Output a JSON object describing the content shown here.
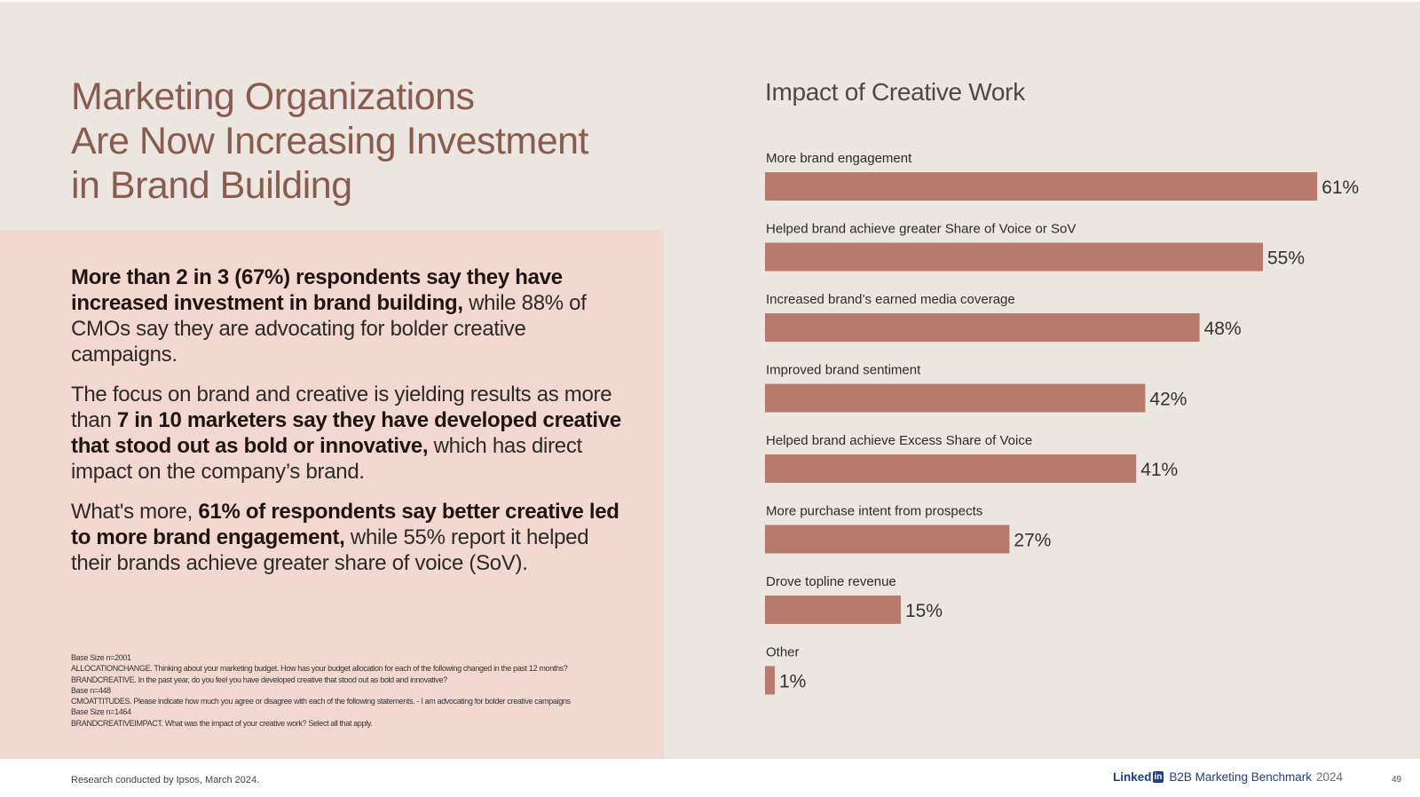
{
  "headline": [
    "Marketing Organizations",
    "Are Now Increasing Investment",
    "in Brand Building"
  ],
  "paragraphs": [
    {
      "b1": "More than 2 in 3 (67%) respondents say they have increased investment in brand building,",
      "t1": " while 88% of CMOs say they are advocating for bolder creative campaigns."
    },
    {
      "t1": "The focus on brand and creative is yielding results as more than ",
      "b1": "7 in 10 marketers say they have developed creative that stood out as bold or innovative,",
      "t2": " which has direct impact on the company’s brand."
    },
    {
      "t1": "What's more, ",
      "b1": "61% of respondents say better creative led to more brand engagement,",
      "t2": " while 55% report it helped their brands achieve greater share of voice (SoV)."
    }
  ],
  "footnotes": [
    "Base Size n=2001",
    "ALLOCATIONCHANGE. Thinking about your marketing budget. How has your budget allocation for each of the following changed in the past 12 months?",
    "BRANDCREATIVE. In the past year, do you feel you have developed creative that stood out as bold and innovative?",
    "Base n=448",
    "CMOATTITUDES. Please indicate how much you agree or disagree with each of the following statements. - I am advocating for bolder creative campaigns",
    "Base Size n=1464",
    "BRANDCREATIVEIMPACT. What was the impact of your creative work? Select all that apply."
  ],
  "chart_data": {
    "type": "bar",
    "orientation": "horizontal",
    "title": "Impact of Creative Work",
    "categories": [
      "More brand engagement",
      "Helped brand achieve greater Share of Voice or SoV",
      "Increased brand’s earned media coverage",
      "Improved brand sentiment",
      "Helped brand achieve Excess Share of Voice",
      "More purchase intent from prospects",
      "Drove topline revenue",
      "Other"
    ],
    "values": [
      61,
      55,
      48,
      42,
      41,
      27,
      15,
      1
    ],
    "value_labels": [
      "61%",
      "55%",
      "48%",
      "42%",
      "41%",
      "27%",
      "15%",
      "1%"
    ],
    "unit": "%",
    "bar_color": "#b87b6b",
    "grid": false,
    "legend": "none"
  },
  "footer": {
    "source": "Research conducted by Ipsos, March 2024.",
    "brand_word": "Linked",
    "brand_box": "in",
    "report": "B2B Marketing Benchmark",
    "year": "2024",
    "page": "49"
  },
  "colors": {
    "background": "#ebe6e0",
    "panel": "#f3d8d2",
    "headline": "#8a5b4f",
    "bar": "#b87b6b",
    "linkedin_blue": "#1d3f8a"
  }
}
